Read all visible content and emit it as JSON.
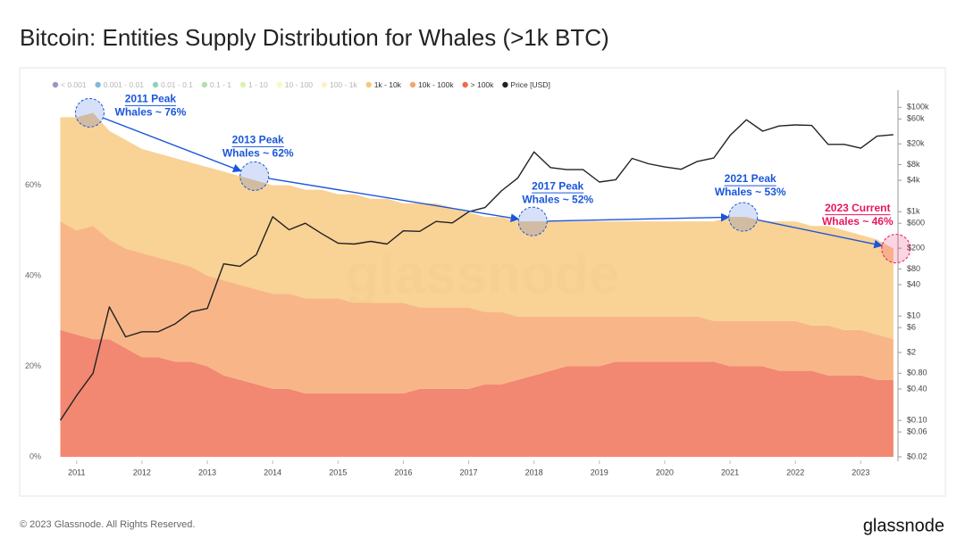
{
  "chart_data": {
    "type": "stacked-area",
    "title": "Bitcoin: Entities Supply Distribution for Whales (>1k BTC)",
    "watermark": "glassnode",
    "footer": "© 2023 Glassnode. All Rights Reserved.",
    "brand": "glassnode",
    "inactive_legend": [
      {
        "name": "< 0.001",
        "color": "#5e4fa2"
      },
      {
        "name": "0.001 - 0.01",
        "color": "#3288bd"
      },
      {
        "name": "0.01 - 0.1",
        "color": "#45b29d"
      },
      {
        "name": "0.1 - 1",
        "color": "#7fcd7b"
      },
      {
        "name": "1 - 10",
        "color": "#c4e67f"
      },
      {
        "name": "10 - 100",
        "color": "#eef5a0"
      },
      {
        "name": "100 - 1k",
        "color": "#fde7a0"
      }
    ],
    "x": [
      2010.75,
      2011,
      2011.25,
      2011.5,
      2011.75,
      2012,
      2012.25,
      2012.5,
      2012.75,
      2013,
      2013.25,
      2013.5,
      2013.75,
      2014,
      2014.25,
      2014.5,
      2014.75,
      2015,
      2015.25,
      2015.5,
      2015.75,
      2016,
      2016.25,
      2016.5,
      2016.75,
      2017,
      2017.25,
      2017.5,
      2017.75,
      2018,
      2018.25,
      2018.5,
      2018.75,
      2019,
      2019.25,
      2019.5,
      2019.75,
      2020,
      2020.25,
      2020.5,
      2020.75,
      2021,
      2021.25,
      2021.5,
      2021.75,
      2022,
      2022.25,
      2022.5,
      2022.75,
      2023,
      2023.25,
      2023.5
    ],
    "series": [
      {
        "name": "1k - 10k",
        "color": "#f8c77c",
        "values": [
          23,
          25,
          25,
          24,
          24,
          23,
          23,
          23,
          23,
          24,
          24,
          24,
          24,
          24,
          24,
          24,
          24,
          23,
          24,
          23,
          23,
          22,
          23,
          23,
          22,
          21,
          21,
          21,
          21,
          21,
          21,
          21,
          21,
          21,
          21,
          21,
          21,
          21,
          21,
          21,
          22,
          23,
          23,
          22,
          22,
          22,
          22,
          22,
          22,
          21,
          21,
          20
        ]
      },
      {
        "name": "10k - 100k",
        "color": "#f6a46a",
        "values": [
          24,
          23,
          25,
          22,
          22,
          23,
          22,
          22,
          21,
          20,
          21,
          21,
          21,
          21,
          21,
          21,
          21,
          21,
          20,
          20,
          20,
          20,
          18,
          18,
          18,
          18,
          16,
          16,
          14,
          13,
          12,
          11,
          11,
          11,
          10,
          10,
          10,
          10,
          10,
          10,
          9,
          10,
          10,
          10,
          11,
          11,
          10,
          11,
          10,
          10,
          10,
          9
        ]
      },
      {
        "name": "> 100k",
        "color": "#ef6a4f",
        "values": [
          28,
          27,
          26,
          26,
          24,
          22,
          22,
          21,
          21,
          20,
          18,
          17,
          16,
          15,
          15,
          14,
          14,
          14,
          14,
          14,
          14,
          14,
          15,
          15,
          15,
          15,
          16,
          16,
          17,
          18,
          19,
          20,
          20,
          20,
          21,
          21,
          21,
          21,
          21,
          21,
          21,
          20,
          20,
          20,
          19,
          19,
          19,
          18,
          18,
          18,
          17,
          17
        ]
      },
      {
        "name": "Price [USD]",
        "color": "#222222",
        "axis": "y2",
        "values": [
          0.1,
          0.3,
          0.8,
          15,
          4,
          5,
          5,
          7,
          12,
          14,
          100,
          90,
          150,
          800,
          450,
          600,
          380,
          250,
          240,
          270,
          240,
          430,
          420,
          650,
          610,
          1000,
          1200,
          2500,
          4400,
          14000,
          7000,
          6400,
          6400,
          3700,
          4100,
          10500,
          8300,
          7200,
          6500,
          9200,
          10700,
          29000,
          58000,
          35000,
          44000,
          46000,
          45000,
          19500,
          19500,
          16500,
          28000,
          30000
        ]
      }
    ],
    "xlim": [
      2010.62,
      2023.57
    ],
    "xticks": [
      2011,
      2012,
      2013,
      2014,
      2015,
      2016,
      2017,
      2018,
      2019,
      2020,
      2021,
      2022,
      2023
    ],
    "ylim": [
      0,
      81
    ],
    "yticks": [
      {
        "value": 0,
        "label": "0%"
      },
      {
        "value": 20,
        "label": "20%"
      },
      {
        "value": 40,
        "label": "40%"
      },
      {
        "value": 60,
        "label": "60%"
      }
    ],
    "y2lim": [
      0.02,
      214000
    ],
    "y2log": true,
    "y2ticks": [
      {
        "value": 0.02,
        "label": "$0.02"
      },
      {
        "value": 0.06,
        "label": "$0.06"
      },
      {
        "value": 0.1,
        "label": "$0.10"
      },
      {
        "value": 0.4,
        "label": "$0.40"
      },
      {
        "value": 0.8,
        "label": "$0.80"
      },
      {
        "value": 2,
        "label": "$2"
      },
      {
        "value": 6,
        "label": "$6"
      },
      {
        "value": 10,
        "label": "$10"
      },
      {
        "value": 40,
        "label": "$40"
      },
      {
        "value": 80,
        "label": "$80"
      },
      {
        "value": 200,
        "label": "$200"
      },
      {
        "value": 600,
        "label": "$600"
      },
      {
        "value": 1000,
        "label": "$1k"
      },
      {
        "value": 4000,
        "label": "$4k"
      },
      {
        "value": 8000,
        "label": "$8k"
      },
      {
        "value": 20000,
        "label": "$20k"
      },
      {
        "value": 60000,
        "label": "$60k"
      },
      {
        "value": 100000,
        "label": "$100k"
      }
    ],
    "grid": false,
    "annotations": [
      {
        "title": "2011 Peak",
        "text": "Whales ~ 76%",
        "x": 2011.2,
        "y": 76,
        "color": "#1a56db"
      },
      {
        "title": "2013 Peak",
        "text": "Whales ~ 62%",
        "x": 2013.72,
        "y": 62,
        "color": "#1a56db"
      },
      {
        "title": "2017 Peak",
        "text": "Whales ~ 52%",
        "x": 2017.98,
        "y": 52,
        "color": "#1a56db"
      },
      {
        "title": "2021 Peak",
        "text": "Whales ~ 53%",
        "x": 2021.2,
        "y": 53,
        "color": "#1a56db"
      },
      {
        "title": "2023 Current",
        "text": "Whales ~ 46%",
        "x": 2023.54,
        "y": 46,
        "color": "#e8175d"
      }
    ]
  }
}
